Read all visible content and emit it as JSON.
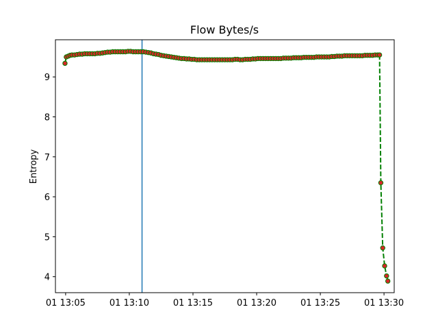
{
  "chart_data": {
    "type": "line",
    "title": "Flow Bytes/s",
    "xlabel": "",
    "ylabel": "Entropy",
    "x_unit": "minutes after 13:00",
    "xlim": [
      4.2,
      30.8
    ],
    "ylim": [
      3.6,
      9.93
    ],
    "x_ticks": [
      {
        "value": 5,
        "label": "01 13:05"
      },
      {
        "value": 10,
        "label": "01 13:10"
      },
      {
        "value": 15,
        "label": "01 13:15"
      },
      {
        "value": 20,
        "label": "01 13:20"
      },
      {
        "value": 25,
        "label": "01 13:25"
      },
      {
        "value": 30,
        "label": "01 13:30"
      }
    ],
    "y_ticks": [
      {
        "value": 4,
        "label": "4"
      },
      {
        "value": 5,
        "label": "5"
      },
      {
        "value": 6,
        "label": "6"
      },
      {
        "value": 7,
        "label": "7"
      },
      {
        "value": 8,
        "label": "8"
      },
      {
        "value": 9,
        "label": "9"
      }
    ],
    "grid": false,
    "vline": {
      "x": 11.0,
      "color": "#1f77b4"
    },
    "series": [
      {
        "line_color": "#008000",
        "marker_face": "#d62728",
        "marker_edge": "#008000",
        "line_style": "dashed",
        "points": [
          [
            4.95,
            9.34
          ],
          [
            5.05,
            9.5
          ],
          [
            5.2,
            9.52
          ],
          [
            5.35,
            9.54
          ],
          [
            5.5,
            9.55
          ],
          [
            5.7,
            9.55
          ],
          [
            5.9,
            9.56
          ],
          [
            6.1,
            9.57
          ],
          [
            6.3,
            9.57
          ],
          [
            6.5,
            9.58
          ],
          [
            6.7,
            9.58
          ],
          [
            6.9,
            9.58
          ],
          [
            7.1,
            9.58
          ],
          [
            7.3,
            9.58
          ],
          [
            7.5,
            9.59
          ],
          [
            7.7,
            9.59
          ],
          [
            7.9,
            9.6
          ],
          [
            8.1,
            9.61
          ],
          [
            8.3,
            9.62
          ],
          [
            8.5,
            9.62
          ],
          [
            8.7,
            9.63
          ],
          [
            8.9,
            9.63
          ],
          [
            9.1,
            9.63
          ],
          [
            9.3,
            9.63
          ],
          [
            9.5,
            9.63
          ],
          [
            9.7,
            9.63
          ],
          [
            9.9,
            9.64
          ],
          [
            10.1,
            9.64
          ],
          [
            10.3,
            9.63
          ],
          [
            10.5,
            9.63
          ],
          [
            10.7,
            9.63
          ],
          [
            10.9,
            9.63
          ],
          [
            11.1,
            9.63
          ],
          [
            11.3,
            9.62
          ],
          [
            11.5,
            9.61
          ],
          [
            11.7,
            9.6
          ],
          [
            11.9,
            9.58
          ],
          [
            12.1,
            9.57
          ],
          [
            12.3,
            9.56
          ],
          [
            12.5,
            9.54
          ],
          [
            12.7,
            9.53
          ],
          [
            12.9,
            9.52
          ],
          [
            13.1,
            9.51
          ],
          [
            13.3,
            9.5
          ],
          [
            13.5,
            9.49
          ],
          [
            13.7,
            9.48
          ],
          [
            13.9,
            9.47
          ],
          [
            14.1,
            9.46
          ],
          [
            14.3,
            9.46
          ],
          [
            14.5,
            9.45
          ],
          [
            14.7,
            9.45
          ],
          [
            14.9,
            9.44
          ],
          [
            15.1,
            9.44
          ],
          [
            15.3,
            9.43
          ],
          [
            15.5,
            9.43
          ],
          [
            15.7,
            9.43
          ],
          [
            15.9,
            9.43
          ],
          [
            16.1,
            9.43
          ],
          [
            16.3,
            9.43
          ],
          [
            16.5,
            9.43
          ],
          [
            16.7,
            9.43
          ],
          [
            16.9,
            9.43
          ],
          [
            17.1,
            9.43
          ],
          [
            17.3,
            9.43
          ],
          [
            17.5,
            9.43
          ],
          [
            17.7,
            9.43
          ],
          [
            17.9,
            9.43
          ],
          [
            18.1,
            9.43
          ],
          [
            18.3,
            9.44
          ],
          [
            18.5,
            9.44
          ],
          [
            18.7,
            9.43
          ],
          [
            18.9,
            9.43
          ],
          [
            19.1,
            9.44
          ],
          [
            19.3,
            9.44
          ],
          [
            19.5,
            9.44
          ],
          [
            19.7,
            9.45
          ],
          [
            19.9,
            9.45
          ],
          [
            20.1,
            9.46
          ],
          [
            20.3,
            9.46
          ],
          [
            20.5,
            9.46
          ],
          [
            20.7,
            9.46
          ],
          [
            20.9,
            9.46
          ],
          [
            21.1,
            9.46
          ],
          [
            21.3,
            9.46
          ],
          [
            21.5,
            9.46
          ],
          [
            21.7,
            9.46
          ],
          [
            21.9,
            9.46
          ],
          [
            22.1,
            9.47
          ],
          [
            22.3,
            9.47
          ],
          [
            22.5,
            9.47
          ],
          [
            22.7,
            9.47
          ],
          [
            22.9,
            9.48
          ],
          [
            23.1,
            9.48
          ],
          [
            23.3,
            9.48
          ],
          [
            23.5,
            9.48
          ],
          [
            23.7,
            9.49
          ],
          [
            23.9,
            9.49
          ],
          [
            24.1,
            9.49
          ],
          [
            24.3,
            9.49
          ],
          [
            24.5,
            9.49
          ],
          [
            24.7,
            9.5
          ],
          [
            24.9,
            9.5
          ],
          [
            25.1,
            9.5
          ],
          [
            25.3,
            9.5
          ],
          [
            25.5,
            9.5
          ],
          [
            25.7,
            9.5
          ],
          [
            25.9,
            9.51
          ],
          [
            26.1,
            9.51
          ],
          [
            26.3,
            9.52
          ],
          [
            26.5,
            9.52
          ],
          [
            26.7,
            9.52
          ],
          [
            26.9,
            9.53
          ],
          [
            27.1,
            9.53
          ],
          [
            27.3,
            9.53
          ],
          [
            27.5,
            9.53
          ],
          [
            27.7,
            9.53
          ],
          [
            27.9,
            9.53
          ],
          [
            28.1,
            9.53
          ],
          [
            28.3,
            9.53
          ],
          [
            28.5,
            9.54
          ],
          [
            28.7,
            9.54
          ],
          [
            28.9,
            9.54
          ],
          [
            29.1,
            9.54
          ],
          [
            29.3,
            9.55
          ],
          [
            29.5,
            9.55
          ],
          [
            29.65,
            9.55
          ],
          [
            29.75,
            6.35
          ],
          [
            29.9,
            4.72
          ],
          [
            30.05,
            4.27
          ],
          [
            30.2,
            4.02
          ],
          [
            30.3,
            3.89
          ]
        ]
      }
    ]
  }
}
